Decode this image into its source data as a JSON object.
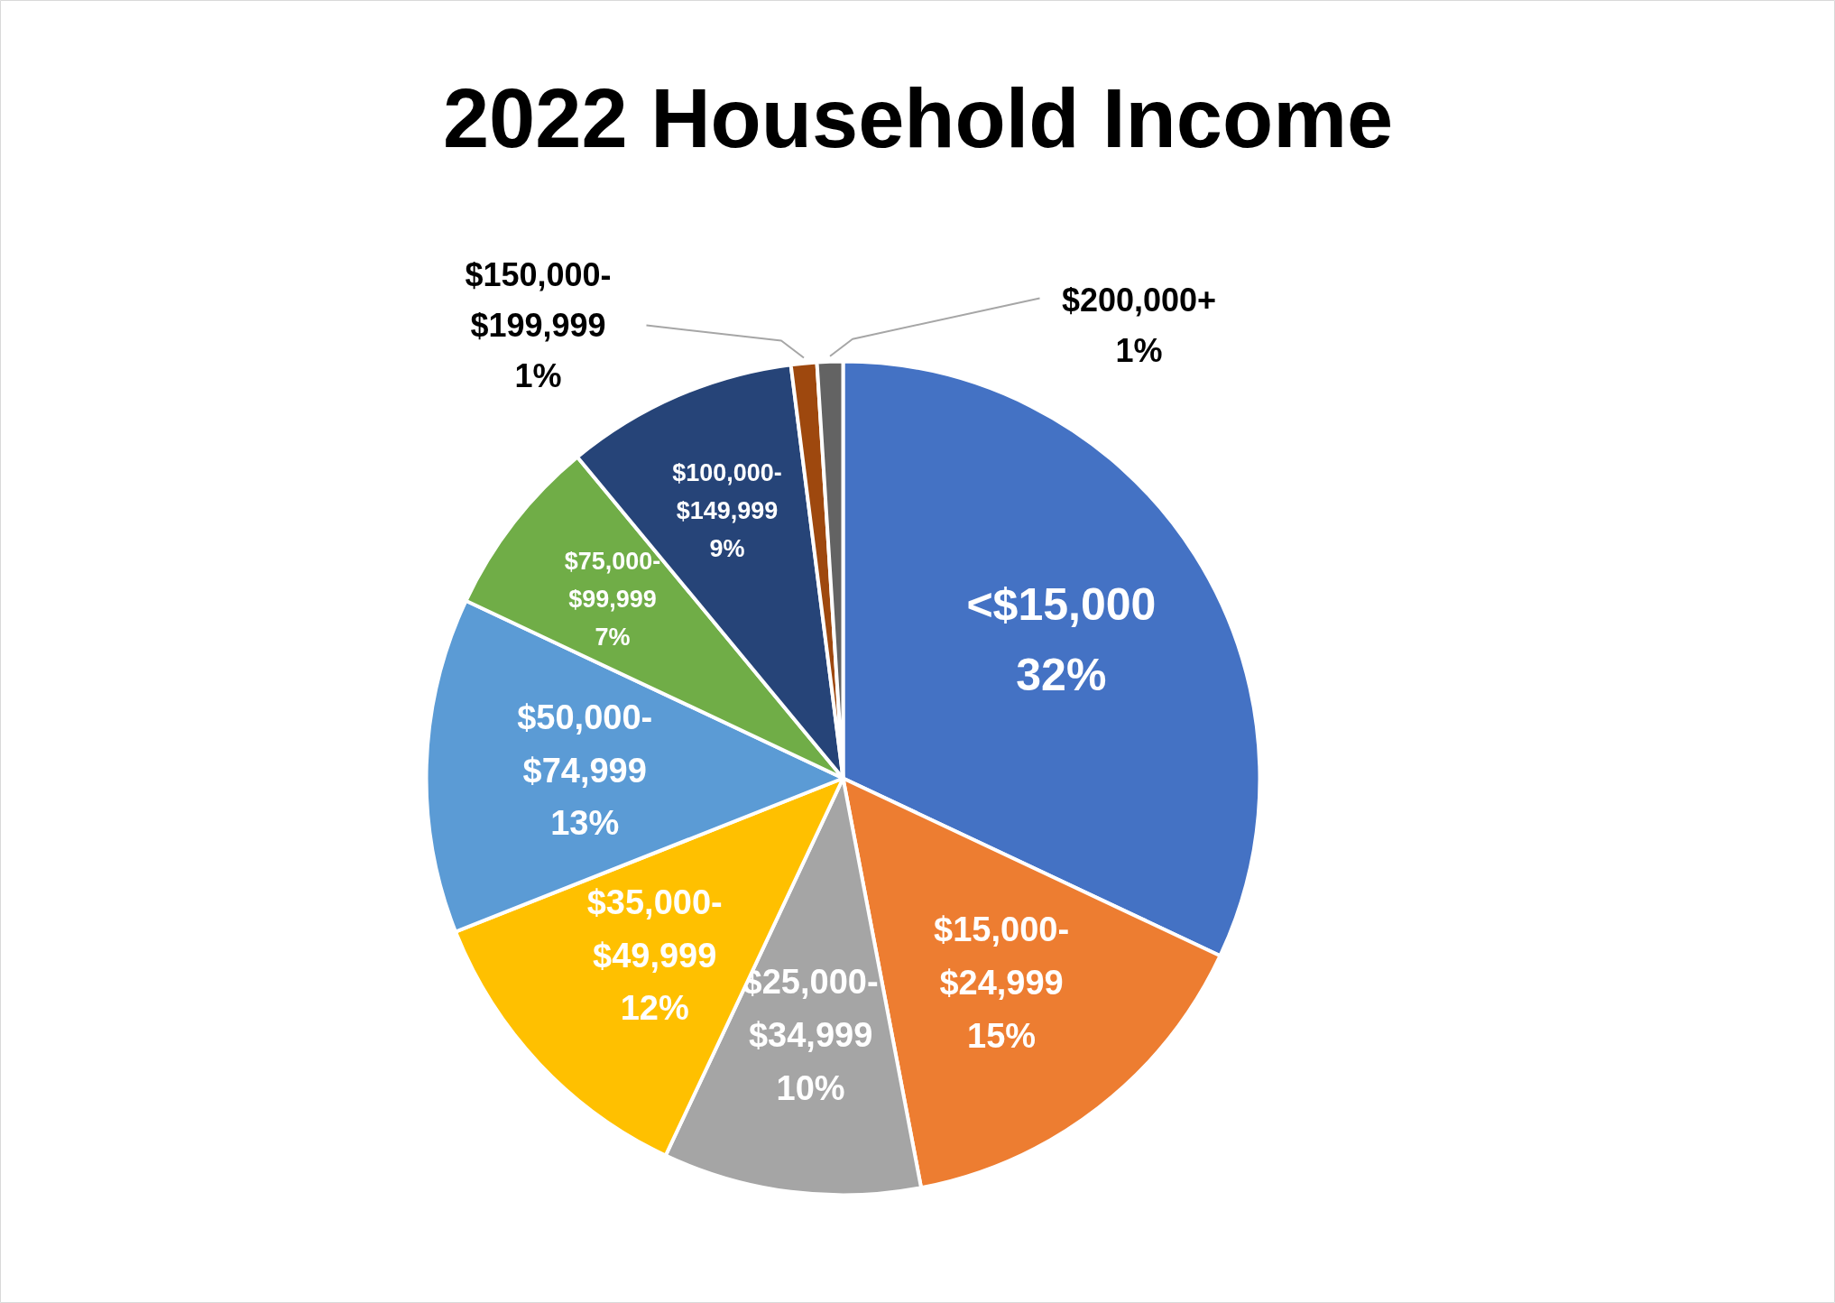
{
  "chart_data": {
    "type": "pie",
    "title": "2022 Household Income",
    "categories": [
      "<$15,000",
      "$15,000-$24,999",
      "$25,000-$34,999",
      "$35,000-$49,999",
      "$50,000-$74,999",
      "$75,000-$99,999",
      "$100,000-$149,999",
      "$150,000-$199,999",
      "$200,000+"
    ],
    "values": [
      32,
      15,
      10,
      12,
      13,
      7,
      9,
      1,
      1
    ],
    "value_labels": [
      "32%",
      "15%",
      "10%",
      "12%",
      "13%",
      "7%",
      "9%",
      "1%",
      "1%"
    ],
    "colors": [
      "#4472c4",
      "#ed7d31",
      "#a5a5a5",
      "#ffc000",
      "#5b9bd5",
      "#70ad47",
      "#264478",
      "#9e480e",
      "#636363"
    ]
  }
}
